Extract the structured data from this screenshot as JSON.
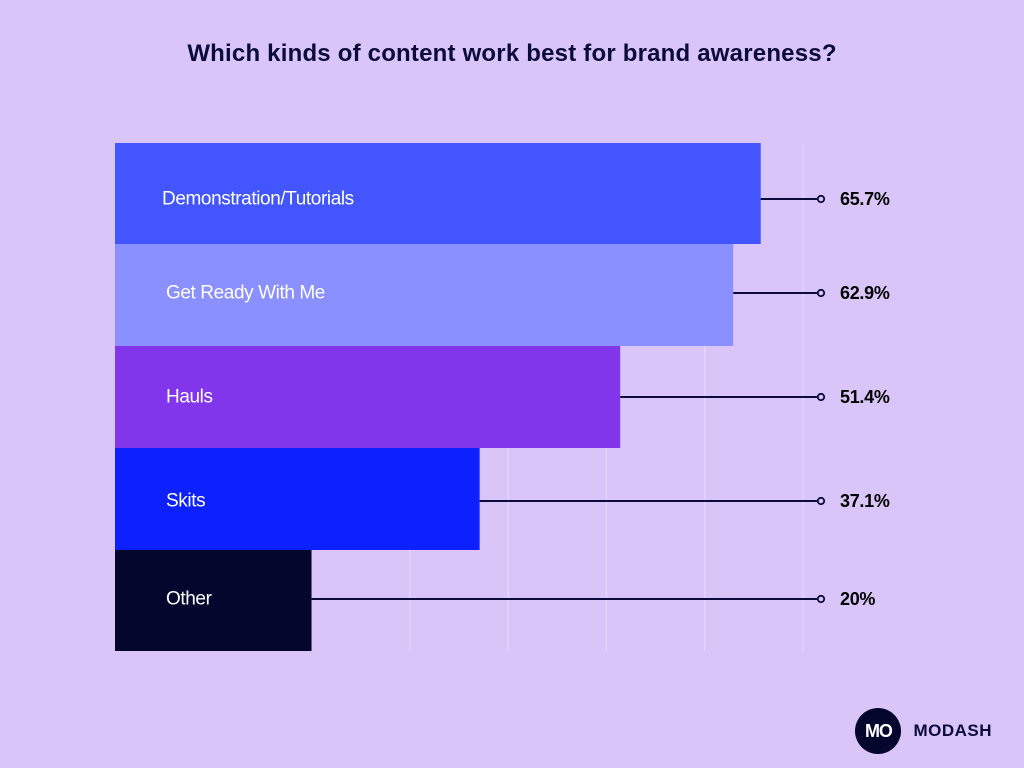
{
  "colors": {
    "background": "#dac5f9",
    "title_text": "#0b0b3b",
    "gridline": "#e8dcfb",
    "leader_line": "#0b0b3b",
    "value_text": "#000000",
    "brand_circle": "#04062e",
    "brand_text": "#0b0b3b"
  },
  "brand": {
    "logo_text": "MO",
    "name": "MODASH"
  },
  "chart_data": {
    "type": "bar",
    "orientation": "horizontal",
    "title": "Which kinds of content work best for brand awareness?",
    "xlabel": "",
    "ylabel": "",
    "xlim": [
      0,
      70
    ],
    "grid": true,
    "categories": [
      "Demonstration/Tutorials",
      "Get Ready With Me",
      "Hauls",
      "Skits",
      "Other"
    ],
    "values": [
      65.7,
      62.9,
      51.4,
      37.1,
      20
    ],
    "value_labels": [
      "65.7%",
      "62.9%",
      "51.4%",
      "37.1%",
      "20%"
    ],
    "bar_colors": [
      "#4355ff",
      "#8a90ff",
      "#8236ec",
      "#0d20ff",
      "#04062e"
    ],
    "label_colors": [
      "#ffffff",
      "#ffffff",
      "#ffffff",
      "#ffffff",
      "#ffffff"
    ]
  }
}
